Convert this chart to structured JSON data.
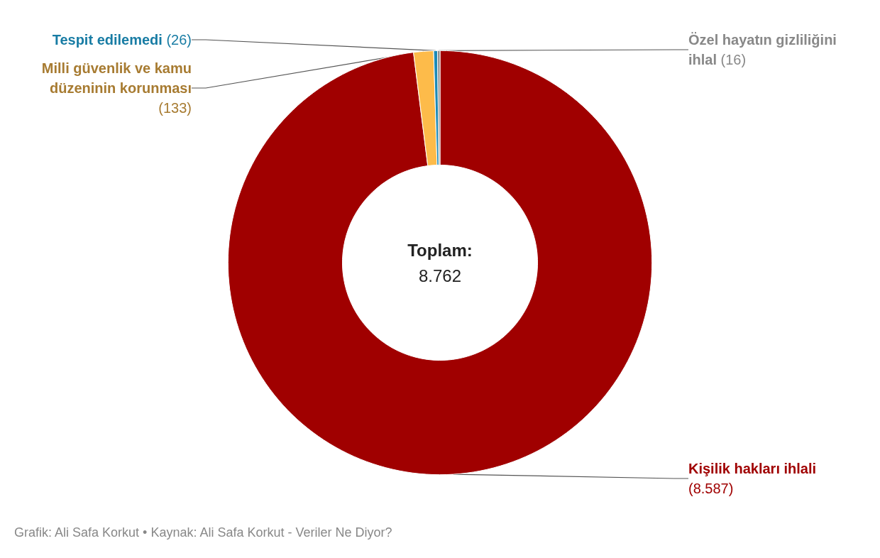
{
  "chart_data": {
    "type": "donut",
    "categories": [
      "Kişilik hakları ihlali",
      "Milli güvenlik ve kamu düzeninin korunması",
      "Tespit edilemedi",
      "Özel hayatın gizliliğini ihlal"
    ],
    "values": [
      8587,
      133,
      26,
      16
    ],
    "colors": [
      "#a00000",
      "#fdbb4a",
      "#1b8ab6",
      "#888888"
    ],
    "value_labels": [
      "(8.587)",
      "(133)",
      "(26)",
      "(16)"
    ],
    "annotations": [
      "Toplam:",
      "8.762",
      "Grafik: Ali Safa Korkut • Kaynak: Ali Safa Korkut - Veriler Ne Diyor?"
    ],
    "legend": false
  }
}
